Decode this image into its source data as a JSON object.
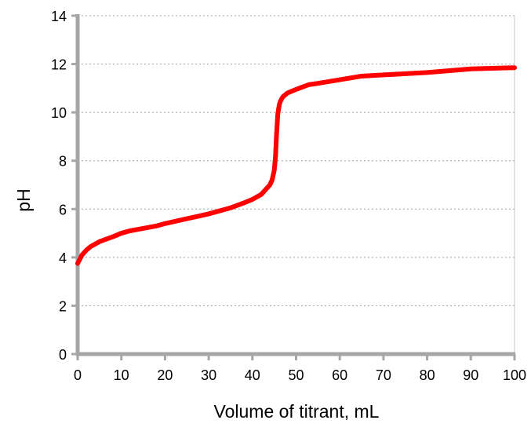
{
  "chart_data": {
    "type": "line",
    "title": "",
    "xlabel": "Volume of titrant, mL",
    "ylabel": "pH",
    "xlim": [
      0,
      100
    ],
    "ylim": [
      0,
      14
    ],
    "x_ticks": [
      0,
      10,
      20,
      30,
      40,
      50,
      60,
      70,
      80,
      90,
      100
    ],
    "y_ticks": [
      0,
      2,
      4,
      6,
      8,
      10,
      12,
      14
    ],
    "grid": "horizontal dotted",
    "legend": "none",
    "series": [
      {
        "color": "#ff0000",
        "x": [
          0,
          1,
          2,
          3,
          4,
          5,
          6,
          8,
          10,
          12,
          15,
          18,
          20,
          25,
          30,
          35,
          38,
          40,
          42,
          43,
          44,
          44.5,
          45,
          45.3,
          45.5,
          45.7,
          45.8,
          46,
          46.2,
          46.5,
          47,
          48,
          50,
          53,
          55,
          60,
          65,
          70,
          80,
          90,
          100
        ],
        "y": [
          3.75,
          4.1,
          4.3,
          4.45,
          4.55,
          4.65,
          4.72,
          4.85,
          5.0,
          5.1,
          5.2,
          5.3,
          5.4,
          5.6,
          5.8,
          6.05,
          6.25,
          6.4,
          6.6,
          6.8,
          7.0,
          7.2,
          7.6,
          8.2,
          9.0,
          9.6,
          9.9,
          10.15,
          10.35,
          10.5,
          10.65,
          10.8,
          10.95,
          11.15,
          11.2,
          11.35,
          11.5,
          11.55,
          11.65,
          11.8,
          11.85
        ]
      }
    ]
  }
}
